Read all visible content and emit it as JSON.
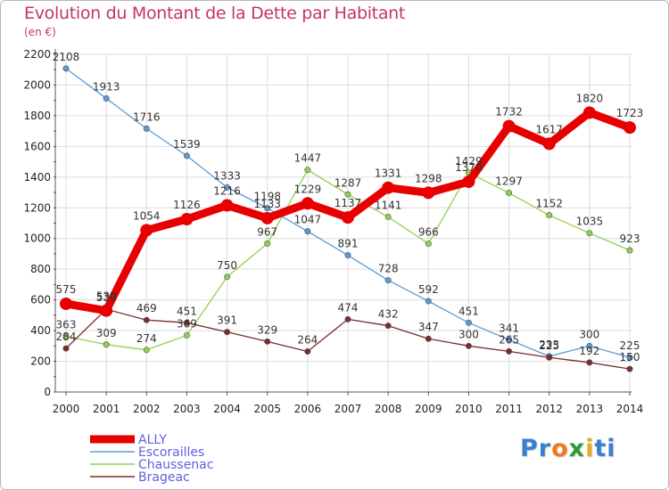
{
  "header": {
    "title": "Evolution du Montant de la Dette par Habitant",
    "subtitle": "(en €)"
  },
  "logo": {
    "parts": [
      "Pr",
      "o",
      "x",
      "i",
      "ti"
    ],
    "colors": [
      "#3a7fd0",
      "#f07a1e",
      "#2f9a3a",
      "#e0b020",
      "#3a7fd0"
    ]
  },
  "chart_data": {
    "type": "line",
    "title": "Evolution du Montant de la Dette par Habitant",
    "ylabel": "(en €)",
    "x": [
      2000,
      2001,
      2002,
      2003,
      2004,
      2005,
      2006,
      2007,
      2008,
      2009,
      2010,
      2011,
      2012,
      2013,
      2014
    ],
    "ylim": [
      0,
      2200
    ],
    "yticks": [
      0,
      200,
      400,
      600,
      800,
      1000,
      1200,
      1400,
      1600,
      1800,
      2000,
      2200
    ],
    "grid": true,
    "legend_position": "bottom-left",
    "series": [
      {
        "name": "ALLY",
        "color": "#e80000",
        "values": [
          575,
          530,
          1054,
          1126,
          1216,
          1133,
          1229,
          1137,
          1331,
          1298,
          1370,
          1732,
          1617,
          1820,
          1723
        ]
      },
      {
        "name": "Escorailles",
        "color": "#5b9bd5",
        "values": [
          2108,
          1913,
          1716,
          1539,
          1333,
          1198,
          1047,
          891,
          728,
          592,
          451,
          341,
          233,
          300,
          225
        ]
      },
      {
        "name": "Chaussenac",
        "color": "#92d050",
        "values": [
          363,
          309,
          274,
          369,
          750,
          967,
          1447,
          1287,
          1141,
          966,
          1429,
          1297,
          1152,
          1035,
          923
        ]
      },
      {
        "name": "Brageac",
        "color": "#7b2c2c",
        "values": [
          284,
          539,
          469,
          451,
          391,
          329,
          264,
          474,
          432,
          347,
          300,
          265,
          225,
          192,
          150
        ]
      }
    ]
  }
}
